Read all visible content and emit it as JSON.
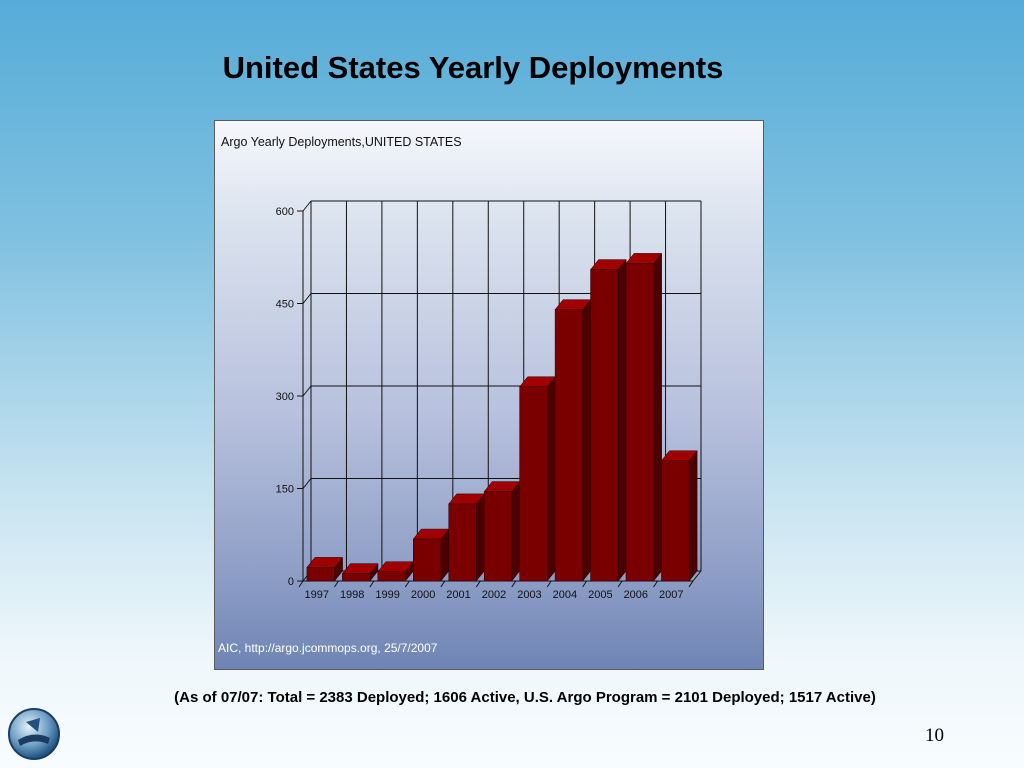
{
  "slide": {
    "title": "United States Yearly Deployments",
    "footnote": "(As of 07/07:  Total = 2383 Deployed; 1606 Active, U.S. Argo Program = 2101 Deployed; 1517 Active)",
    "page_number": "10"
  },
  "chart_data": {
    "type": "bar",
    "title": "Argo Yearly Deployments,UNITED STATES",
    "credit": "AIC, http://argo.jcommops.org, 25/7/2007",
    "categories": [
      "1997",
      "1998",
      "1999",
      "2000",
      "2001",
      "2002",
      "2003",
      "2004",
      "2005",
      "2006",
      "2007"
    ],
    "values": [
      22,
      12,
      15,
      68,
      125,
      145,
      315,
      440,
      505,
      515,
      195
    ],
    "yticks": [
      "0",
      "150",
      "300",
      "450",
      "600"
    ],
    "ylim": [
      0,
      600
    ],
    "xlabel": "",
    "ylabel": "",
    "grid": true,
    "bar_color": "#7a0000"
  }
}
